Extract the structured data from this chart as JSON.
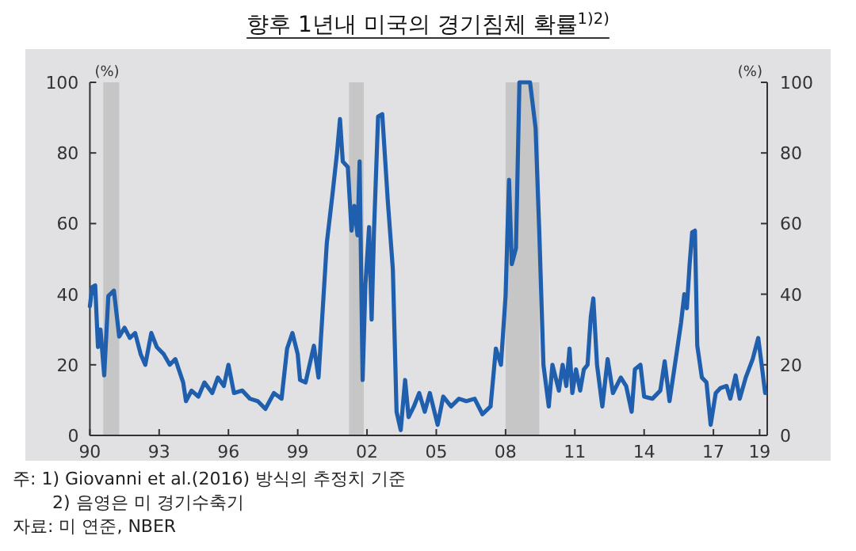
{
  "chart_data": {
    "type": "line",
    "title": "향후 1년내 미국의 경기침체 확률$^{1)2)}$",
    "ylabel": "(%)",
    "y2label": "(%)",
    "x": [
      1990.0,
      1990.1,
      1990.23,
      1990.35,
      1990.46,
      1990.62,
      1990.8,
      1991.04,
      1991.27,
      1991.5,
      1991.73,
      1991.96,
      1992.2,
      1992.4,
      1992.66,
      1992.9,
      1993.2,
      1993.46,
      1993.7,
      1994.04,
      1994.16,
      1994.4,
      1994.7,
      1994.96,
      1995.3,
      1995.54,
      1995.8,
      1996.0,
      1996.24,
      1996.6,
      1996.93,
      1997.27,
      1997.6,
      1997.97,
      1998.3,
      1998.54,
      1998.77,
      1999.0,
      1999.1,
      1999.34,
      1999.7,
      1999.9,
      2000.26,
      2000.5,
      2000.7,
      2000.83,
      2000.95,
      2001.17,
      2001.33,
      2001.45,
      2001.59,
      2001.68,
      2001.81,
      2001.93,
      2002.09,
      2002.2,
      2002.3,
      2002.48,
      2002.66,
      2002.9,
      2003.12,
      2003.28,
      2003.46,
      2003.65,
      2003.8,
      2004.03,
      2004.26,
      2004.5,
      2004.72,
      2005.06,
      2005.3,
      2005.64,
      2005.98,
      2006.3,
      2006.66,
      2007.0,
      2007.35,
      2007.58,
      2007.8,
      2008.0,
      2008.15,
      2008.27,
      2008.45,
      2008.6,
      2009.06,
      2009.3,
      2009.46,
      2009.64,
      2009.87,
      2010.03,
      2010.31,
      2010.47,
      2010.63,
      2010.77,
      2010.89,
      2011.05,
      2011.23,
      2011.39,
      2011.55,
      2011.69,
      2011.8,
      2011.96,
      2012.19,
      2012.42,
      2012.65,
      2012.99,
      2013.22,
      2013.46,
      2013.6,
      2013.84,
      2014.0,
      2014.36,
      2014.7,
      2014.89,
      2015.1,
      2015.4,
      2015.6,
      2015.74,
      2015.85,
      2015.97,
      2016.08,
      2016.2,
      2016.3,
      2016.5,
      2016.7,
      2016.88,
      2017.1,
      2017.3,
      2017.57,
      2017.73,
      2017.96,
      2018.14,
      2018.4,
      2018.7,
      2018.94,
      2019.1,
      2019.24
    ],
    "series": [
      {
        "color": "#1f5fad",
        "values": [
          36.6,
          42,
          42.5,
          25,
          30,
          17,
          39.5,
          41,
          28,
          30.5,
          27.6,
          29,
          23,
          20,
          29,
          25,
          23,
          20,
          21.6,
          15,
          9.7,
          12.7,
          11,
          15,
          12,
          16.4,
          14,
          20,
          12,
          12.7,
          10.4,
          9.7,
          7.5,
          12,
          10.4,
          24.6,
          29,
          23,
          15.7,
          15,
          25.4,
          16.4,
          54.5,
          68,
          80,
          89.6,
          77.6,
          76,
          58,
          65,
          56.7,
          77.6,
          15.7,
          42.5,
          59,
          32.8,
          57.5,
          90.3,
          91,
          66.4,
          47,
          6.7,
          1.5,
          15.7,
          5.2,
          8.2,
          12,
          6.7,
          12,
          3,
          11,
          8.2,
          10.4,
          9.7,
          10.4,
          6,
          8.2,
          24.6,
          20,
          39.5,
          72.4,
          48.5,
          53,
          100,
          100,
          87,
          57.5,
          20,
          8.2,
          20,
          12.7,
          20,
          14,
          24.6,
          12,
          18.7,
          12.7,
          18.7,
          20,
          33.6,
          38.8,
          20,
          8.2,
          21.6,
          12,
          16.4,
          14,
          6.7,
          18.7,
          20,
          11,
          10.4,
          12.7,
          21,
          9.7,
          23,
          32,
          40,
          36,
          48.5,
          57.5,
          58,
          25.4,
          16.4,
          15,
          3,
          12,
          13.4,
          14,
          10.4,
          17,
          10.4,
          16.4,
          21.6,
          27.6,
          19.4,
          12
        ]
      }
    ],
    "xlim": [
      1990,
      2019.33
    ],
    "xticks": [
      {
        "value": 1990,
        "label": "90"
      },
      {
        "value": 1993,
        "label": "93"
      },
      {
        "value": 1996,
        "label": "96"
      },
      {
        "value": 1999,
        "label": "99"
      },
      {
        "value": 2002,
        "label": "02"
      },
      {
        "value": 2005,
        "label": "05"
      },
      {
        "value": 2008,
        "label": "08"
      },
      {
        "value": 2011,
        "label": "11"
      },
      {
        "value": 2014,
        "label": "14"
      },
      {
        "value": 2017,
        "label": "17"
      },
      {
        "value": 2019,
        "label": "19"
      }
    ],
    "ylim": [
      0,
      100
    ],
    "yticks": [
      0,
      20,
      40,
      60,
      80,
      100
    ],
    "y2lim": [
      0,
      100
    ],
    "y2ticks": [
      0,
      20,
      40,
      60,
      80,
      100
    ],
    "bands": [
      {
        "axis": "x",
        "from": 1990.58,
        "to": 1991.27,
        "color": "#c6c6c6"
      },
      {
        "axis": "x",
        "from": 2001.22,
        "to": 2001.86,
        "color": "#c6c6c6"
      },
      {
        "axis": "x",
        "from": 2008.0,
        "to": 2009.46,
        "color": "#c6c6c6"
      }
    ],
    "line_style": "solid",
    "annotations": [
      "주: 1) Giovanni et al.(2016) 방식의 추정치 기준",
      "2) 음영은 미 경기수축기",
      "자료: 미 연준, NBER"
    ]
  }
}
